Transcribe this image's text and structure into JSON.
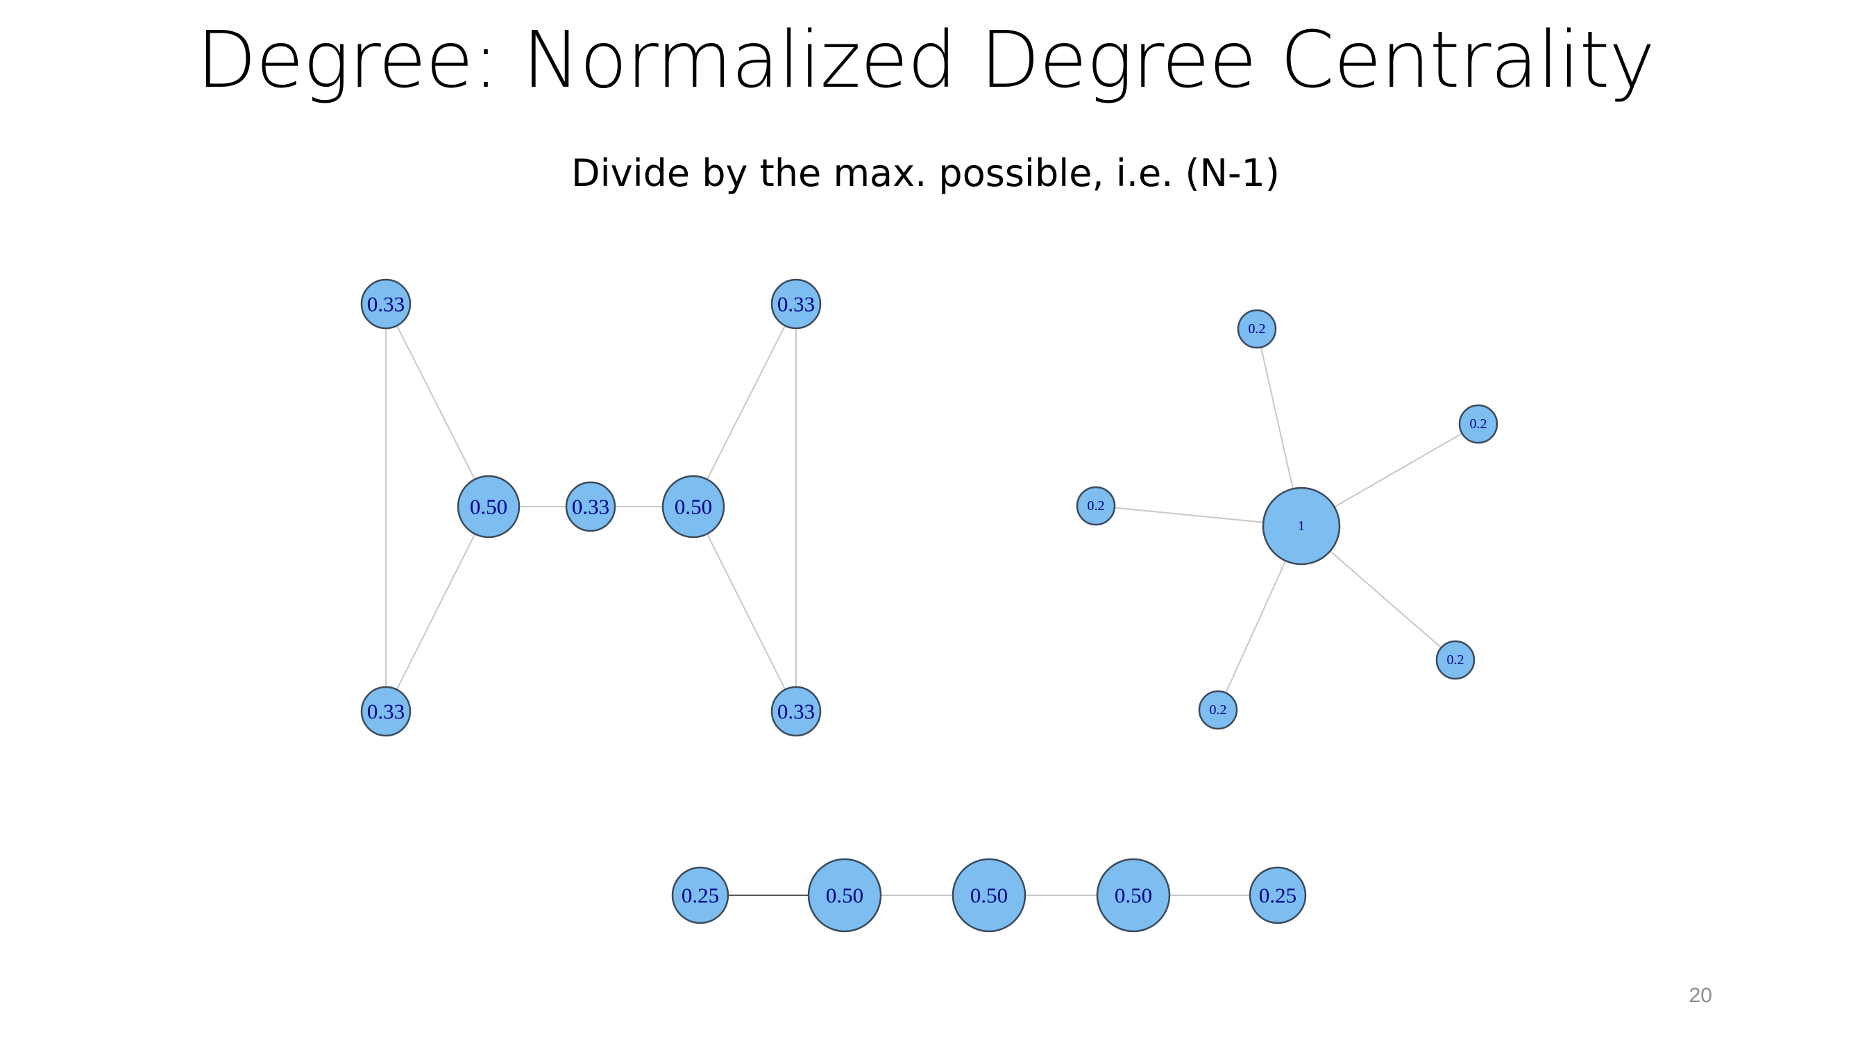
{
  "slide": {
    "title": "Degree: Normalized Degree Centrality",
    "subtitle": "Divide by the max. possible, i.e. (N-1)",
    "page_number": "20"
  },
  "colors": {
    "node_fill": "#7dbdf0",
    "node_stroke": "#3b4a5a",
    "node_label": "#00008b",
    "edge": "#c8c8c8"
  },
  "graphs": [
    {
      "name": "bowtie-graph",
      "nodes": [
        {
          "id": "a",
          "label": "0.33"
        },
        {
          "id": "b",
          "label": "0.33"
        },
        {
          "id": "c",
          "label": "0.50"
        },
        {
          "id": "d",
          "label": "0.33"
        },
        {
          "id": "e",
          "label": "0.50"
        },
        {
          "id": "f",
          "label": "0.33"
        },
        {
          "id": "g",
          "label": "0.33"
        }
      ],
      "edges": [
        [
          "a",
          "b"
        ],
        [
          "a",
          "c"
        ],
        [
          "b",
          "c"
        ],
        [
          "c",
          "d"
        ],
        [
          "d",
          "e"
        ],
        [
          "e",
          "f"
        ],
        [
          "e",
          "g"
        ],
        [
          "f",
          "g"
        ]
      ]
    },
    {
      "name": "star-graph",
      "nodes": [
        {
          "id": "hub",
          "label": "1"
        },
        {
          "id": "s1",
          "label": "0.2"
        },
        {
          "id": "s2",
          "label": "0.2"
        },
        {
          "id": "s3",
          "label": "0.2"
        },
        {
          "id": "s4",
          "label": "0.2"
        },
        {
          "id": "s5",
          "label": "0.2"
        }
      ],
      "edges": [
        [
          "hub",
          "s1"
        ],
        [
          "hub",
          "s2"
        ],
        [
          "hub",
          "s3"
        ],
        [
          "hub",
          "s4"
        ],
        [
          "hub",
          "s5"
        ]
      ]
    },
    {
      "name": "path-graph",
      "nodes": [
        {
          "id": "p1",
          "label": "0.25"
        },
        {
          "id": "p2",
          "label": "0.50"
        },
        {
          "id": "p3",
          "label": "0.50"
        },
        {
          "id": "p4",
          "label": "0.50"
        },
        {
          "id": "p5",
          "label": "0.25"
        }
      ],
      "edges": [
        [
          "p1",
          "p2"
        ],
        [
          "p2",
          "p3"
        ],
        [
          "p3",
          "p4"
        ],
        [
          "p4",
          "p5"
        ]
      ]
    }
  ]
}
